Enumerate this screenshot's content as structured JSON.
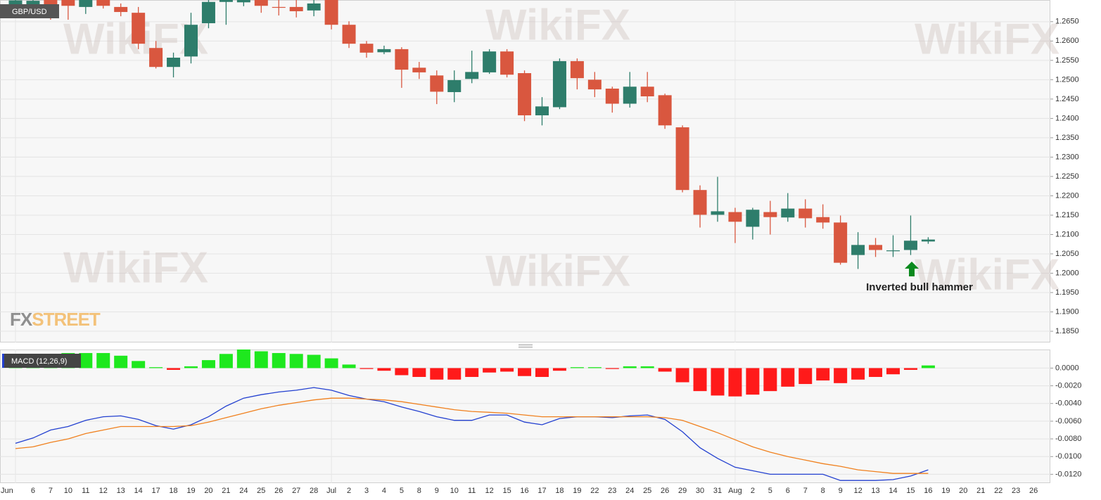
{
  "watermark": "WikiFX",
  "logo_parts": [
    "FX",
    "STREET"
  ],
  "annotation": "Inverted bull hammer",
  "chart_data": [
    {
      "type": "candlestick",
      "title": "GBP/USD",
      "up_color": "#2e7d6b",
      "down_color": "#d9573f",
      "open": [
        1.2688,
        1.2692,
        1.2708,
        1.2708,
        1.2688,
        1.2708,
        1.2688,
        1.2673,
        1.2582,
        1.2533,
        1.256,
        1.2646,
        1.2701,
        1.27,
        1.271,
        1.2688,
        1.2688,
        1.2679,
        1.2708,
        1.2642,
        1.2593,
        1.2571,
        1.2579,
        1.2531,
        1.2511,
        1.2468,
        1.2502,
        1.2519,
        1.2573,
        1.2517,
        1.2408,
        1.2429,
        1.2548,
        1.25,
        1.2477,
        1.2438,
        1.2482,
        1.246,
        1.2377,
        1.2215,
        1.2151,
        1.2158,
        1.212,
        1.2158,
        1.2144,
        1.2167,
        1.2145,
        1.2131,
        1.2047,
        1.2073,
        1.2058,
        1.206,
        1.2082
      ],
      "high": [
        1.2715,
        1.2712,
        1.2715,
        1.2715,
        1.2715,
        1.2715,
        1.2697,
        1.2688,
        1.26,
        1.257,
        1.2673,
        1.2706,
        1.2715,
        1.272,
        1.2715,
        1.2706,
        1.2706,
        1.2706,
        1.2715,
        1.2651,
        1.26,
        1.2588,
        1.2584,
        1.2546,
        1.2524,
        1.2524,
        1.2575,
        1.2579,
        1.2579,
        1.2524,
        1.2455,
        1.2555,
        1.2555,
        1.252,
        1.2482,
        1.252,
        1.252,
        1.2464,
        1.2382,
        1.2227,
        1.2249,
        1.2169,
        1.2169,
        1.2187,
        1.2207,
        1.2191,
        1.2178,
        1.2149,
        1.2106,
        1.2091,
        1.2098,
        1.2149,
        1.2093
      ],
      "low": [
        1.2684,
        1.2688,
        1.2655,
        1.2655,
        1.267,
        1.2684,
        1.2664,
        1.2579,
        1.2529,
        1.2506,
        1.2542,
        1.2633,
        1.2642,
        1.269,
        1.2673,
        1.2666,
        1.2661,
        1.2664,
        1.263,
        1.2582,
        1.2557,
        1.2566,
        1.2479,
        1.2502,
        1.2437,
        1.2442,
        1.2491,
        1.2515,
        1.2506,
        1.2393,
        1.2382,
        1.2424,
        1.2475,
        1.2455,
        1.2415,
        1.2428,
        1.2442,
        1.2373,
        1.2209,
        1.2118,
        1.2133,
        1.2078,
        1.2087,
        1.21,
        1.2133,
        1.2118,
        1.2115,
        1.2022,
        1.2011,
        1.2042,
        1.2042,
        1.2047,
        1.2076
      ],
      "close": [
        1.2705,
        1.2704,
        1.2684,
        1.2691,
        1.2708,
        1.2691,
        1.2675,
        1.2593,
        1.2533,
        1.2557,
        1.2642,
        1.2701,
        1.2706,
        1.2712,
        1.2691,
        1.2687,
        1.2677,
        1.2697,
        1.2642,
        1.2593,
        1.257,
        1.2579,
        1.2526,
        1.2519,
        1.2469,
        1.2499,
        1.252,
        1.2573,
        1.2513,
        1.2408,
        1.2431,
        1.2548,
        1.2504,
        1.2475,
        1.2438,
        1.2482,
        1.2457,
        1.2382,
        1.2215,
        1.2151,
        1.216,
        1.2133,
        1.2164,
        1.2145,
        1.2167,
        1.2142,
        1.2131,
        1.2027,
        1.2073,
        1.206,
        1.2059,
        1.2084,
        1.2087
      ],
      "ylim": [
        1.1821,
        1.2706
      ],
      "yticks": [
        {
          "value": 1.185,
          "label": "1.1850"
        },
        {
          "value": 1.19,
          "label": "1.1900"
        },
        {
          "value": 1.195,
          "label": "1.1950"
        },
        {
          "value": 1.2,
          "label": "1.2000"
        },
        {
          "value": 1.205,
          "label": "1.2050"
        },
        {
          "value": 1.21,
          "label": "1.2100"
        },
        {
          "value": 1.215,
          "label": "1.2150"
        },
        {
          "value": 1.22,
          "label": "1.2200"
        },
        {
          "value": 1.225,
          "label": "1.2250"
        },
        {
          "value": 1.23,
          "label": "1.2300"
        },
        {
          "value": 1.235,
          "label": "1.2350"
        },
        {
          "value": 1.24,
          "label": "1.2400"
        },
        {
          "value": 1.245,
          "label": "1.2450"
        },
        {
          "value": 1.25,
          "label": "1.2500"
        },
        {
          "value": 1.255,
          "label": "1.2550"
        },
        {
          "value": 1.26,
          "label": "1.2600"
        },
        {
          "value": 1.265,
          "label": "1.2650"
        }
      ],
      "grid": true
    },
    {
      "type": "macd",
      "title": "MACD (12,26,9)",
      "categories": [
        "Jun",
        "6",
        "7",
        "10",
        "11",
        "12",
        "13",
        "14",
        "17",
        "18",
        "19",
        "20",
        "21",
        "24",
        "25",
        "26",
        "27",
        "28",
        "Jul",
        "2",
        "3",
        "4",
        "5",
        "8",
        "9",
        "10",
        "11",
        "12",
        "15",
        "16",
        "17",
        "18",
        "19",
        "22",
        "23",
        "24",
        "25",
        "26",
        "29",
        "30",
        "31",
        "Aug",
        "2",
        "5",
        "6",
        "7",
        "8",
        "9",
        "12",
        "13",
        "14",
        "15",
        "16",
        "19",
        "20",
        "21",
        "22",
        "23",
        "26"
      ],
      "histogram": {
        "up_color": "#1ee81e",
        "down_color": "#ff1a1a",
        "values": [
          0.0014,
          0.0015,
          0.0016,
          0.0017,
          0.0017,
          0.0017,
          0.0014,
          0.0008,
          0.0001,
          -0.0002,
          0.0002,
          0.0009,
          0.0016,
          0.0021,
          0.0019,
          0.0017,
          0.0016,
          0.0015,
          0.0011,
          0.0004,
          -0.0001,
          -0.0003,
          -0.0008,
          -0.001,
          -0.0013,
          -0.0013,
          -0.001,
          -0.0005,
          -0.0004,
          -0.0009,
          -0.001,
          -0.0003,
          0.0001,
          0.0001,
          -0.0001,
          0.0002,
          0.0002,
          -0.0004,
          -0.0016,
          -0.0026,
          -0.0031,
          -0.0032,
          -0.003,
          -0.0026,
          -0.0021,
          -0.0018,
          -0.0014,
          -0.0017,
          -0.0013,
          -0.001,
          -0.0007,
          -0.0002,
          0.0003,
          null,
          null,
          null,
          null,
          null,
          null
        ]
      },
      "series": [
        {
          "color": "#2340d0",
          "values": [
            -0.0085,
            -0.0079,
            -0.007,
            -0.0066,
            -0.0059,
            -0.0055,
            -0.0054,
            -0.0058,
            -0.0065,
            -0.0069,
            -0.0064,
            -0.0055,
            -0.0043,
            -0.0034,
            -0.003,
            -0.0027,
            -0.0025,
            -0.0022,
            -0.0025,
            -0.0031,
            -0.0035,
            -0.0038,
            -0.0044,
            -0.0049,
            -0.0055,
            -0.0059,
            -0.0059,
            -0.0053,
            -0.0053,
            -0.0061,
            -0.0064,
            -0.0057,
            -0.0055,
            -0.0055,
            -0.0056,
            -0.0054,
            -0.0053,
            -0.0058,
            -0.0072,
            -0.009,
            -0.0102,
            -0.0112,
            -0.0116,
            -0.012,
            -0.012,
            -0.012,
            -0.012,
            -0.0127,
            -0.0127,
            -0.0127,
            -0.0126,
            -0.0122,
            -0.0115,
            null,
            null,
            null,
            null,
            null,
            null
          ]
        },
        {
          "color": "#f0801e",
          "values": [
            -0.0091,
            -0.0089,
            -0.0084,
            -0.008,
            -0.0074,
            -0.007,
            -0.0066,
            -0.0066,
            -0.0066,
            -0.0066,
            -0.0065,
            -0.0061,
            -0.0056,
            -0.0051,
            -0.0046,
            -0.0042,
            -0.0039,
            -0.0036,
            -0.0034,
            -0.0034,
            -0.0035,
            -0.0036,
            -0.0038,
            -0.0041,
            -0.0044,
            -0.0047,
            -0.0049,
            -0.005,
            -0.0051,
            -0.0053,
            -0.0055,
            -0.0055,
            -0.0055,
            -0.0055,
            -0.0055,
            -0.0055,
            -0.0055,
            -0.0056,
            -0.0059,
            -0.0066,
            -0.0073,
            -0.0081,
            -0.0089,
            -0.0095,
            -0.01,
            -0.0104,
            -0.0108,
            -0.0111,
            -0.0115,
            -0.0117,
            -0.0119,
            -0.0119,
            -0.0119,
            null,
            null,
            null,
            null,
            null,
            null
          ]
        }
      ],
      "ylim": [
        -0.013,
        0.0021
      ],
      "yticks": [
        {
          "value": -0.012,
          "label": "-0.0120"
        },
        {
          "value": -0.01,
          "label": "-0.0100"
        },
        {
          "value": -0.008,
          "label": "-0.0080"
        },
        {
          "value": -0.006,
          "label": "-0.0060"
        },
        {
          "value": -0.004,
          "label": "-0.0040"
        },
        {
          "value": -0.002,
          "label": "-0.0020"
        },
        {
          "value": 0,
          "label": "0.0000"
        }
      ],
      "grid": true
    }
  ]
}
